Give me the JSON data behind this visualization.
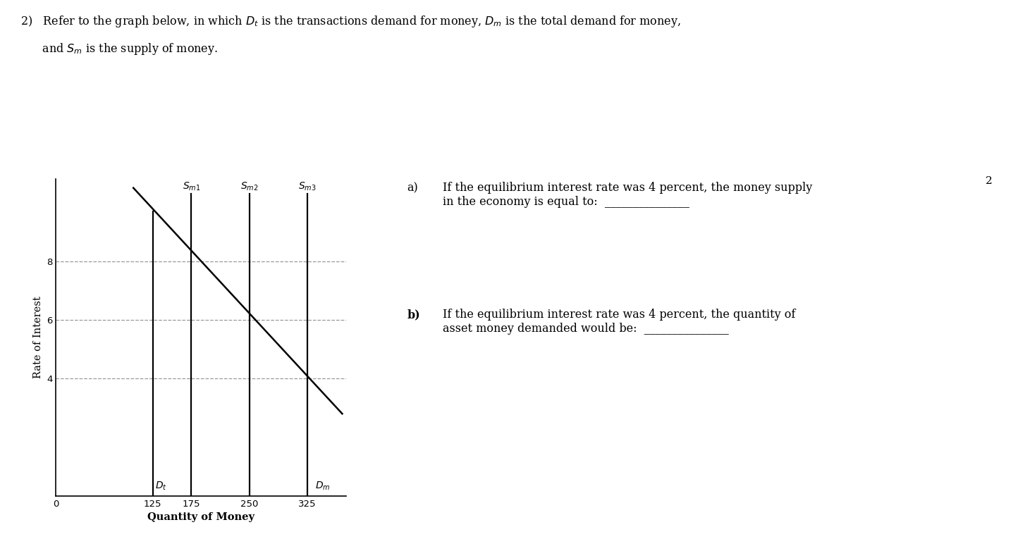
{
  "xlabel": "Quantity of Money",
  "ylabel": "Rate of Interest",
  "xticks": [
    0,
    125,
    175,
    250,
    325
  ],
  "yticks": [
    4,
    6,
    8
  ],
  "xlim": [
    0,
    375
  ],
  "ylim": [
    0,
    10.8
  ],
  "Dt_x": 125,
  "Sm1_x": 175,
  "Sm2_x": 250,
  "Sm3_x": 325,
  "Dm_x_start": 100,
  "Dm_y_start": 10.5,
  "Dm_x_end": 370,
  "Dm_y_end": 2.8,
  "hline_y": [
    4,
    6,
    8
  ],
  "background_color": "#ffffff",
  "line_color": "#000000",
  "dashed_color": "#999999",
  "Dt_top_y": 9.7,
  "Sm_top_y": 10.3,
  "gray_bar_color": "#cccccc",
  "header_line1": "2)   Refer to the graph below, in which $D_t$ is the transactions demand for money, $D_m$ is the total demand for money,",
  "header_line2": "      and $S_m$ is the supply of money.",
  "qa_label": "a)",
  "qa_text": "If the equilibrium interest rate was 4 percent, the money supply\nin the economy is equal to:  _______________",
  "qb_label": "b)",
  "qb_text": "If the equilibrium interest rate was 4 percent, the quantity of\nasset money demanded would be:  _______________",
  "page_num": "2",
  "fig_width": 14.44,
  "fig_height": 7.82,
  "dpi": 100
}
